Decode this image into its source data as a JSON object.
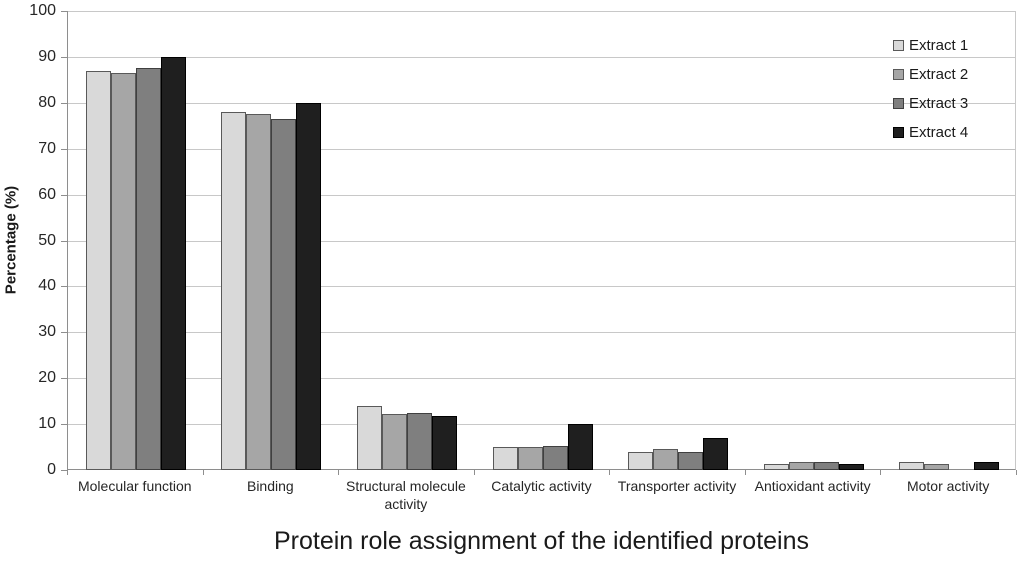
{
  "chart_data": {
    "type": "bar",
    "title": "Protein role assignment of the identified proteins",
    "xlabel": "",
    "ylabel": "Percentage (%)",
    "ylim": [
      0,
      100
    ],
    "yticks": [
      0,
      10,
      20,
      30,
      40,
      50,
      60,
      70,
      80,
      90,
      100
    ],
    "grid": true,
    "legend_position": "top-right",
    "categories": [
      "Molecular function",
      "Binding",
      "Structural molecule activity",
      "Catalytic activity",
      "Transporter activity",
      "Antioxidant activity",
      "Motor activity"
    ],
    "series": [
      {
        "name": "Extract 1",
        "color": "#d9d9d9",
        "border_color": "#595959",
        "values": [
          87,
          78,
          14,
          5,
          4,
          1.3,
          1.8
        ]
      },
      {
        "name": "Extract 2",
        "color": "#a6a6a6",
        "border_color": "#595959",
        "values": [
          86.5,
          77.5,
          12.2,
          5,
          4.5,
          1.8,
          1.4
        ]
      },
      {
        "name": "Extract 3",
        "color": "#7f7f7f",
        "border_color": "#404040",
        "values": [
          87.5,
          76.5,
          12.5,
          5.3,
          4,
          1.8,
          0
        ]
      },
      {
        "name": "Extract 4",
        "color": "#1f1f1f",
        "border_color": "#000000",
        "values": [
          90,
          80,
          11.8,
          10,
          7,
          1.3,
          1.7
        ]
      }
    ],
    "colors": {
      "gridline": "#c8c8c8",
      "axis": "#8e8e8e",
      "text": "#1a1a1a"
    }
  }
}
